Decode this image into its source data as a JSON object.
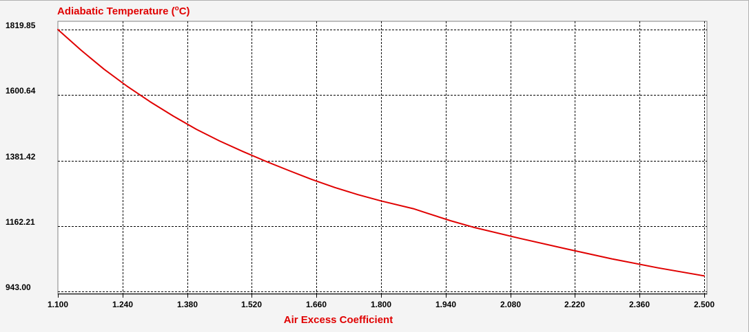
{
  "chart_data": {
    "type": "line",
    "title": "Adiabatic Temperature (",
    "title_unit_sup": "o",
    "title_unit_rest": "C)",
    "xlabel": "Air Excess Coefficient",
    "ylabel": "",
    "xlim": [
      1.1,
      2.5
    ],
    "ylim": [
      943.0,
      1819.85
    ],
    "x_ticks": [
      "1.100",
      "1.240",
      "1.380",
      "1.520",
      "1.660",
      "1.800",
      "1.940",
      "2.080",
      "2.220",
      "2.360",
      "2.500"
    ],
    "y_ticks": [
      "943.00",
      "1162.21",
      "1381.42",
      "1600.64",
      "1819.85"
    ],
    "grid": true,
    "series": [
      {
        "color": "#e00000",
        "x": [
          1.1,
          1.15,
          1.2,
          1.25,
          1.3,
          1.35,
          1.4,
          1.45,
          1.5,
          1.55,
          1.6,
          1.65,
          1.7,
          1.75,
          1.8,
          1.87,
          1.9,
          1.95,
          2.0,
          2.1,
          2.2,
          2.3,
          2.4,
          2.5
        ],
        "y": [
          1819.85,
          1751,
          1687,
          1630,
          1578,
          1530,
          1486,
          1447,
          1412,
          1379,
          1348,
          1318,
          1291,
          1267,
          1246,
          1220,
          1205,
          1180,
          1158,
          1121,
          1086,
          1052,
          1022,
          995
        ]
      }
    ],
    "colors": {
      "title": "#e00000",
      "xlabel": "#e00000",
      "background": "#f4f4f4",
      "plot_background": "#ffffff",
      "grid": "#000000"
    }
  }
}
